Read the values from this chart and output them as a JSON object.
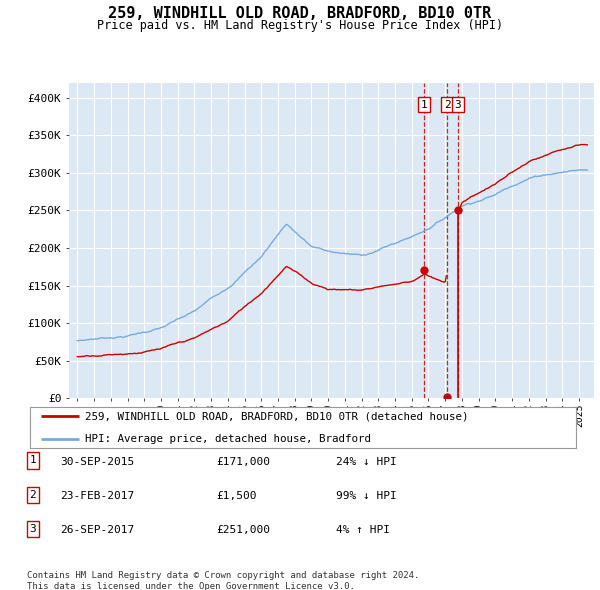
{
  "title": "259, WINDHILL OLD ROAD, BRADFORD, BD10 0TR",
  "subtitle": "Price paid vs. HM Land Registry's House Price Index (HPI)",
  "legend_line1": "259, WINDHILL OLD ROAD, BRADFORD, BD10 0TR (detached house)",
  "legend_line2": "HPI: Average price, detached house, Bradford",
  "footer1": "Contains HM Land Registry data © Crown copyright and database right 2024.",
  "footer2": "This data is licensed under the Open Government Licence v3.0.",
  "table_rows": [
    {
      "num": "1",
      "date": "30-SEP-2015",
      "price": "£171,000",
      "hpi": "24% ↓ HPI"
    },
    {
      "num": "2",
      "date": "23-FEB-2017",
      "price": "£1,500",
      "hpi": "99% ↓ HPI"
    },
    {
      "num": "3",
      "date": "26-SEP-2017",
      "price": "£251,000",
      "hpi": "4% ↑ HPI"
    }
  ],
  "red_color": "#cc0000",
  "blue_color": "#7aaadd",
  "bg_plot": "#dce9f5",
  "grid_color": "#ffffff",
  "ylim": [
    0,
    420000
  ],
  "yticks": [
    0,
    50000,
    100000,
    150000,
    200000,
    250000,
    300000,
    350000,
    400000
  ],
  "ytick_labels": [
    "£0",
    "£50K",
    "£100K",
    "£150K",
    "£200K",
    "£250K",
    "£300K",
    "£350K",
    "£400K"
  ],
  "sale1_date": 2015.75,
  "sale1_price": 171000,
  "sale2_date": 2017.12,
  "sale2_price": 1500,
  "sale3_date": 2017.75,
  "sale3_price": 251000,
  "hpi_anchors_x": [
    1995,
    1996,
    1998,
    2000,
    2002,
    2004,
    2006,
    2007.5,
    2009,
    2010,
    2012,
    2013,
    2015,
    2016,
    2017,
    2018,
    2019,
    2020,
    2021,
    2022,
    2023,
    2024,
    2025
  ],
  "hpi_anchors_y": [
    76000,
    79000,
    84000,
    95000,
    115000,
    148000,
    190000,
    235000,
    205000,
    198000,
    192000,
    200000,
    218000,
    230000,
    245000,
    262000,
    270000,
    278000,
    292000,
    302000,
    308000,
    312000,
    315000
  ],
  "red_anchors_x": [
    1995,
    1996,
    1998,
    2000,
    2002,
    2004,
    2006,
    2007.5,
    2009,
    2010,
    2012,
    2013,
    2015,
    2015.75,
    2016.0,
    2016.5,
    2017.0,
    2017.75,
    2018,
    2019,
    2020,
    2021,
    2022,
    2023,
    2024,
    2025
  ],
  "red_anchors_y": [
    55000,
    58000,
    62000,
    68000,
    80000,
    102000,
    140000,
    178000,
    155000,
    148000,
    147000,
    152000,
    160000,
    171000,
    168000,
    162000,
    158000,
    251000,
    265000,
    278000,
    290000,
    305000,
    318000,
    325000,
    332000,
    336000
  ],
  "xlim_left": 1994.5,
  "xlim_right": 2025.9
}
